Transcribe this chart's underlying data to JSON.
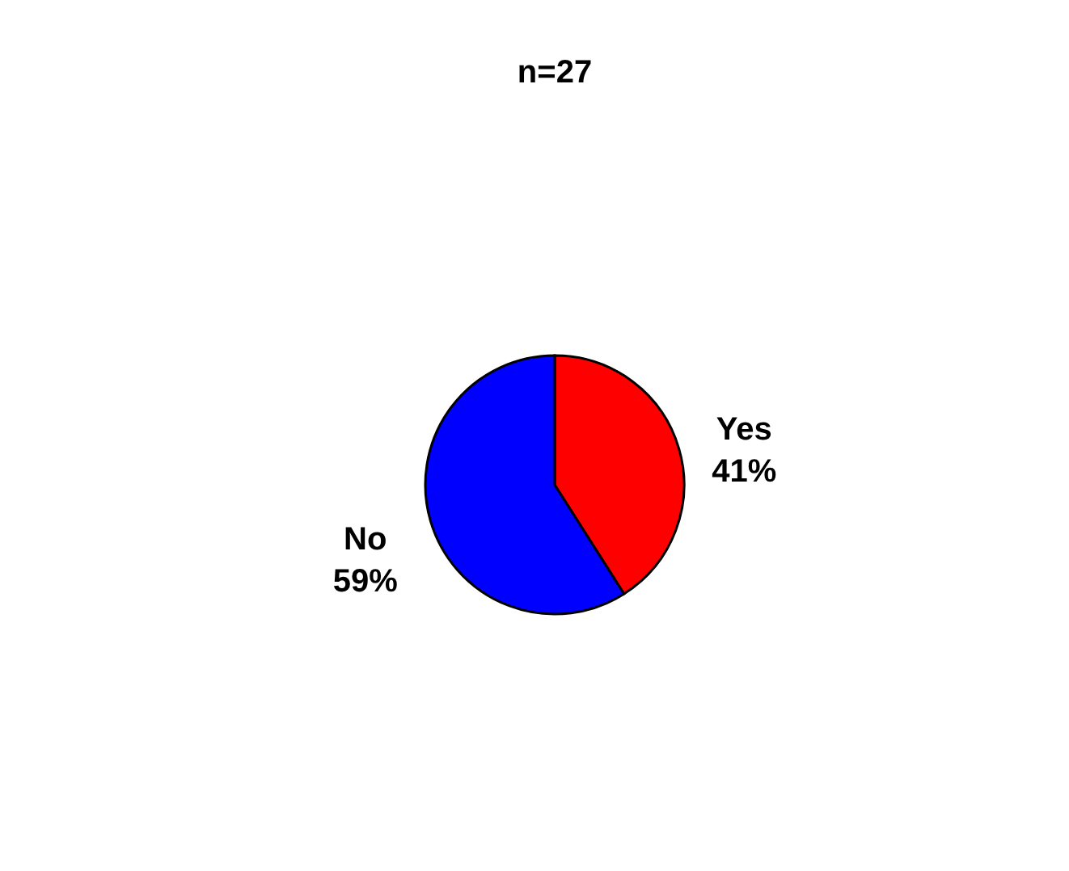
{
  "chart_data": {
    "type": "pie",
    "title": "n=27",
    "categories": [
      "Yes",
      "No"
    ],
    "values": [
      41,
      59
    ],
    "value_labels": [
      "41%",
      "59%"
    ],
    "colors": [
      "#ff0000",
      "#0000ff"
    ]
  }
}
